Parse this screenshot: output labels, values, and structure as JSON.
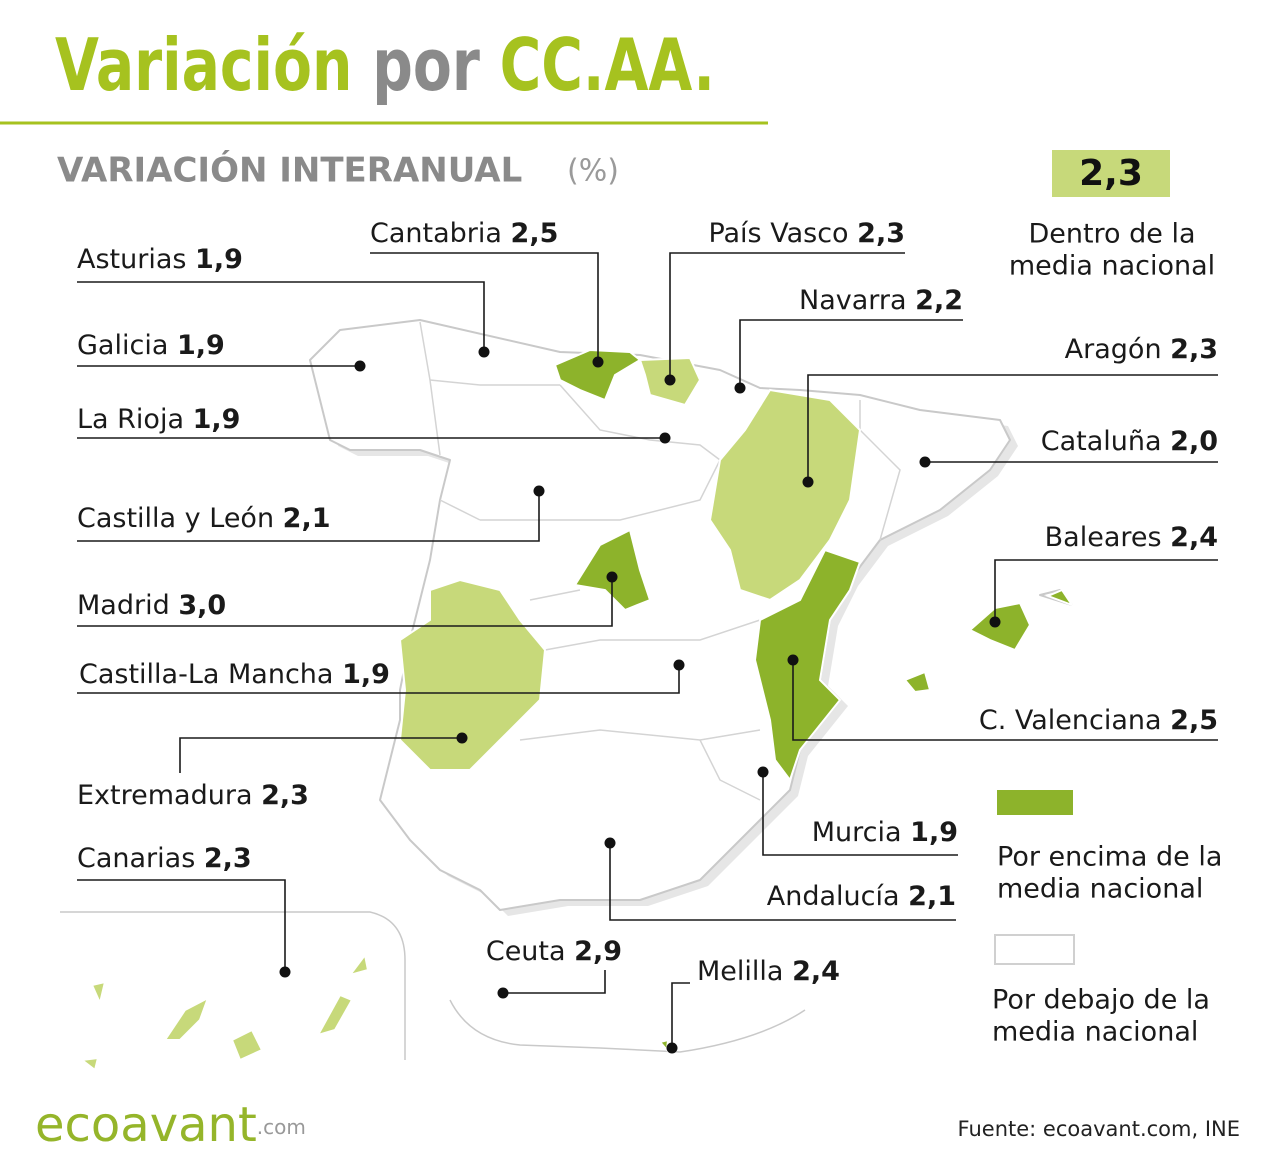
{
  "header": {
    "title": [
      "Variación",
      "por",
      "CC.AA."
    ],
    "subtitle": "VARIACIÓN INTERANUAL",
    "unit": "(%)"
  },
  "legend": {
    "national": {
      "value": "2,3",
      "lines": [
        "Dentro de la",
        "media nacional"
      ],
      "color": "#c7d97a"
    },
    "above": {
      "lines": [
        "Por encima de la",
        "media nacional"
      ],
      "color": "#8db32b"
    },
    "below": {
      "lines": [
        "Por debajo de la",
        "media nacional"
      ],
      "color": "#ffffff"
    }
  },
  "regions": [
    {
      "name": "Asturias",
      "value": "1,9",
      "color": "#ffffff"
    },
    {
      "name": "Galicia",
      "value": "1,9",
      "color": "#ffffff"
    },
    {
      "name": "La Rioja",
      "value": "1,9",
      "color": "#ffffff"
    },
    {
      "name": "Castilla y León",
      "value": "2,1",
      "color": "#ffffff"
    },
    {
      "name": "Madrid",
      "value": "3,0",
      "color": "#8db32b"
    },
    {
      "name": "Castilla-La Mancha",
      "value": "1,9",
      "color": "#ffffff"
    },
    {
      "name": "Extremadura",
      "value": "2,3",
      "color": "#c7d97a"
    },
    {
      "name": "Canarias",
      "value": "2,3",
      "color": "#c7d97a"
    },
    {
      "name": "Cantabria",
      "value": "2,5",
      "color": "#8db32b"
    },
    {
      "name": "País Vasco",
      "value": "2,3",
      "color": "#c7d97a"
    },
    {
      "name": "Navarra",
      "value": "2,2",
      "color": "#ffffff"
    },
    {
      "name": "Aragón",
      "value": "2,3",
      "color": "#c7d97a"
    },
    {
      "name": "Cataluña",
      "value": "2,0",
      "color": "#ffffff"
    },
    {
      "name": "Baleares",
      "value": "2,4",
      "color": "#8db32b"
    },
    {
      "name": "C. Valenciana",
      "value": "2,5",
      "color": "#8db32b"
    },
    {
      "name": "Murcia",
      "value": "1,9",
      "color": "#ffffff"
    },
    {
      "name": "Andalucía",
      "value": "2,1",
      "color": "#ffffff"
    },
    {
      "name": "Ceuta",
      "value": "2,9",
      "color": "#8db32b"
    },
    {
      "name": "Melilla",
      "value": "2,4",
      "color": "#8db32b"
    }
  ],
  "footer": {
    "logo": "ecoavant",
    "logo_domain": ".com",
    "source": "Fuente: ecoavant.com, INE"
  }
}
